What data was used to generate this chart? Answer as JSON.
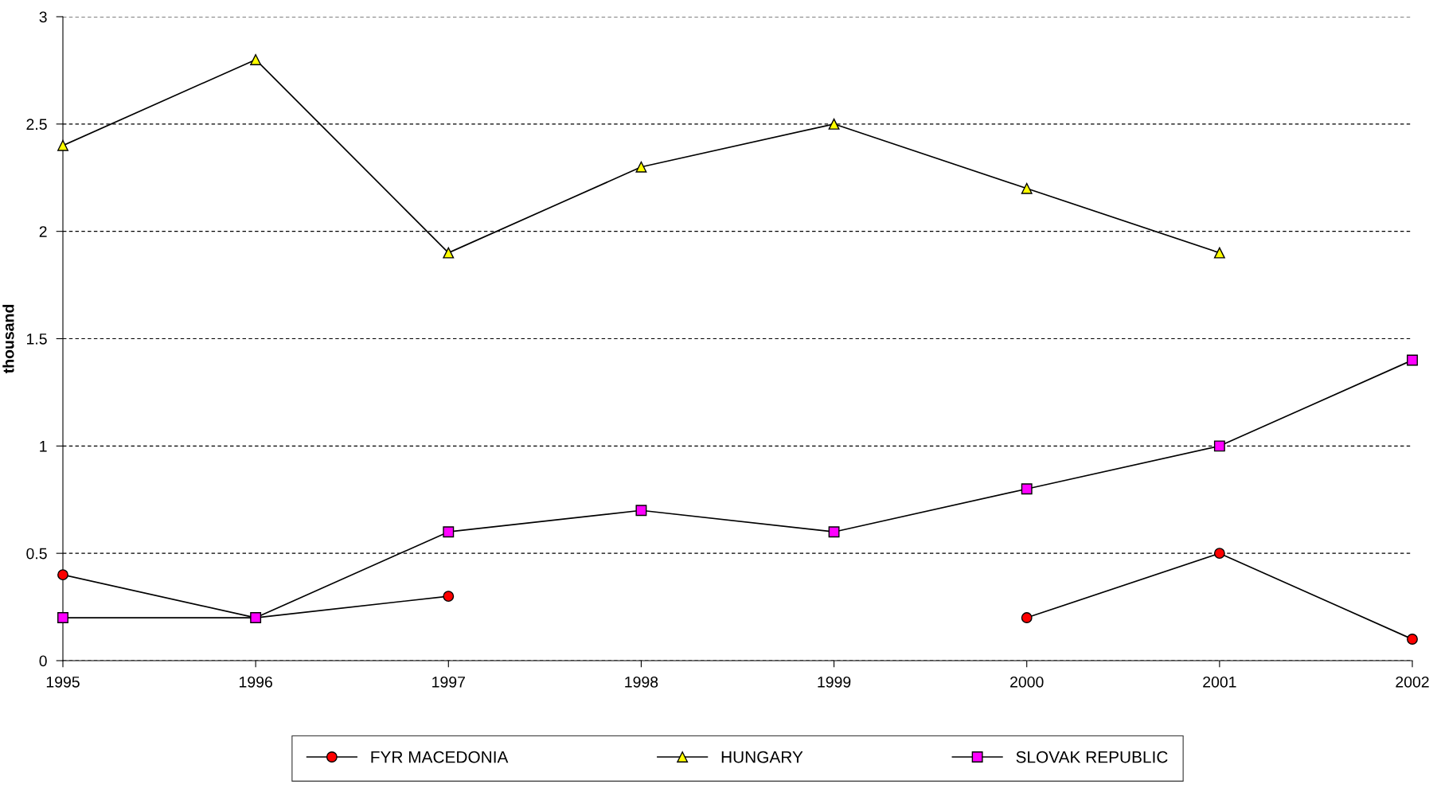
{
  "chart_data": {
    "type": "line",
    "ylabel": "thousand",
    "x": [
      1995,
      1996,
      1997,
      1998,
      1999,
      2000,
      2001,
      2002
    ],
    "xlim": [
      1995,
      2002
    ],
    "xticks": [
      1995,
      1996,
      1997,
      1998,
      1999,
      2000,
      2001,
      2002
    ],
    "ylim": [
      0,
      3
    ],
    "yticks": [
      0,
      0.5,
      1,
      1.5,
      2,
      2.5,
      3
    ],
    "grid": "y",
    "legend": "bottom",
    "series": [
      {
        "name": "FYR MACEDONIA",
        "color": "#ff0000",
        "marker": "circle",
        "values": [
          0.4,
          0.2,
          0.3,
          null,
          null,
          0.2,
          0.5,
          0.1
        ]
      },
      {
        "name": "HUNGARY",
        "color": "#ffff00",
        "marker": "triangle",
        "values": [
          2.4,
          2.8,
          1.9,
          2.3,
          2.5,
          2.2,
          1.9,
          null
        ]
      },
      {
        "name": "SLOVAK REPUBLIC",
        "color": "#ff00ff",
        "marker": "square",
        "values": [
          0.2,
          0.2,
          0.6,
          0.7,
          0.6,
          0.8,
          1.0,
          1.4
        ]
      }
    ]
  }
}
